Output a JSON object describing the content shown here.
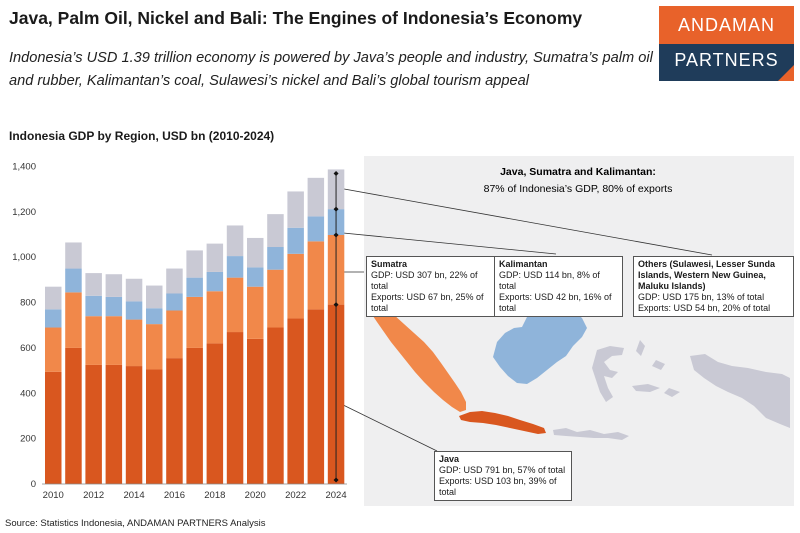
{
  "header": {
    "title": "Java, Palm Oil, Nickel and Bali: The Engines of Indonesia’s Economy",
    "subtitle": "Indonesia’s USD 1.39 trillion economy is powered by Java’s people and industry, Sumatra’s palm oil and rubber, Kalimantan’s coal, Sulawesi’s nickel and Bali’s global tourism appeal"
  },
  "logo": {
    "line1": "ANDAMAN",
    "line2": "PARTNERS"
  },
  "colors": {
    "java": "#d9571f",
    "sumatra": "#f1884a",
    "kalimantan": "#8fb4da",
    "others": "#c9c9d4",
    "map_bg": "#efeff0",
    "logo_orange": "#e8622a",
    "logo_navy": "#1f3c5a"
  },
  "chart_data": {
    "type": "bar",
    "title": "Indonesia GDP by Region, USD bn (2010-2024)",
    "stacked": true,
    "categories": [
      "2010",
      "2011",
      "2012",
      "2013",
      "2014",
      "2015",
      "2016",
      "2017",
      "2018",
      "2019",
      "2020",
      "2021",
      "2022",
      "2023",
      "2024"
    ],
    "x_tick_labels": [
      "2010",
      "2012",
      "2014",
      "2016",
      "2018",
      "2020",
      "2022",
      "2024"
    ],
    "series": [
      {
        "name": "Java",
        "values": [
          495,
          600,
          525,
          525,
          520,
          505,
          555,
          600,
          620,
          670,
          640,
          690,
          730,
          770,
          791
        ]
      },
      {
        "name": "Sumatra",
        "values": [
          195,
          245,
          215,
          215,
          205,
          200,
          210,
          225,
          230,
          240,
          230,
          255,
          285,
          300,
          307
        ]
      },
      {
        "name": "Kalimantan",
        "values": [
          80,
          105,
          90,
          85,
          80,
          70,
          75,
          85,
          85,
          95,
          85,
          100,
          115,
          110,
          114
        ]
      },
      {
        "name": "Others",
        "values": [
          100,
          115,
          100,
          100,
          100,
          100,
          110,
          120,
          125,
          135,
          130,
          145,
          160,
          170,
          175
        ]
      }
    ],
    "ylim": [
      0,
      1400
    ],
    "y_ticks": [
      "0",
      "200",
      "400",
      "600",
      "800",
      "1,000",
      "1,200",
      "1,400"
    ],
    "grid": false
  },
  "map": {
    "header_title": "Java, Sumatra and Kalimantan:",
    "header_sub": "87% of Indonesia’s GDP, 80% of exports",
    "callouts": {
      "sumatra": {
        "title": "Sumatra",
        "gdp": "GDP: USD 307 bn, 22% of total",
        "exports": "Exports: USD 67 bn, 25% of total"
      },
      "kalimantan": {
        "title": "Kalimantan",
        "gdp": "GDP: USD 114 bn, 8% of total",
        "exports": "Exports: USD 42 bn, 16% of total"
      },
      "others": {
        "title": "Others (Sulawesi, Lesser Sunda Islands, Western New Guinea, Maluku Islands)",
        "gdp": "GDP: USD 175 bn, 13% of total",
        "exports": "Exports: USD 54 bn, 20% of total"
      },
      "java": {
        "title": "Java",
        "gdp": "GDP: USD 791 bn, 57% of total",
        "exports": "Exports: USD 103 bn, 39% of total"
      }
    }
  },
  "footer": {
    "source": "Source: Statistics Indonesia, ANDAMAN PARTNERS Analysis"
  }
}
